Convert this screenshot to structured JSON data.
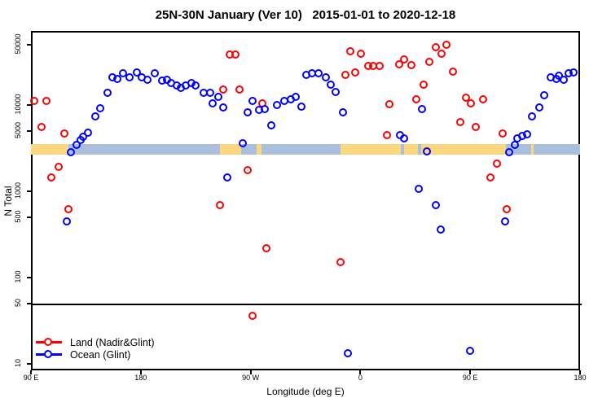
{
  "title": "25N-30N January (Ver 10)   2015-01-01 to 2020-12-18",
  "colors": {
    "land": "#ff0000",
    "ocean": "#0000ff",
    "band_land": "#fbd87f",
    "band_ocean": "#a9bfdc",
    "axis": "#000000"
  },
  "chart_data": {
    "type": "scatter",
    "title": "25N-30N January (Ver 10)   2015-01-01 to 2020-12-18",
    "xlabel": "Longitude (deg E)",
    "ylabel": "N Total",
    "y_scale": "log10",
    "ylim": [
      10,
      56000
    ],
    "x_axis": {
      "range": [
        90,
        540
      ],
      "ticks": [
        {
          "lon": 90,
          "label": "90 E"
        },
        {
          "lon": 180,
          "label": "180"
        },
        {
          "lon": 270,
          "label": "90 W"
        },
        {
          "lon": 360,
          "label": "0"
        },
        {
          "lon": 450,
          "label": "90 E"
        },
        {
          "lon": 540,
          "label": "180"
        }
      ]
    },
    "y_axis": {
      "ticks": [
        {
          "n": 50000,
          "label": "50000"
        },
        {
          "n": 10000,
          "label": "10000"
        },
        {
          "n": 5000,
          "label": "5000"
        },
        {
          "n": 1000,
          "label": "1000"
        },
        {
          "n": 500,
          "label": "500"
        },
        {
          "n": 100,
          "label": "100"
        },
        {
          "n": 50,
          "label": "50"
        },
        {
          "n": 10,
          "label": "10"
        }
      ]
    },
    "threshold_line_n": 50,
    "surface_band": {
      "center_n": 3050,
      "segments": [
        {
          "from": 90,
          "to": 121,
          "surface": "land"
        },
        {
          "from": 121,
          "to": 245,
          "surface": "ocean"
        },
        {
          "from": 245,
          "to": 262,
          "surface": "land"
        },
        {
          "from": 262,
          "to": 275,
          "surface": "ocean"
        },
        {
          "from": 275,
          "to": 279,
          "surface": "land"
        },
        {
          "from": 279,
          "to": 344,
          "surface": "ocean"
        },
        {
          "from": 344,
          "to": 393,
          "surface": "land"
        },
        {
          "from": 393,
          "to": 396,
          "surface": "ocean"
        },
        {
          "from": 396,
          "to": 407,
          "surface": "land"
        },
        {
          "from": 407,
          "to": 410,
          "surface": "ocean"
        },
        {
          "from": 410,
          "to": 479,
          "surface": "land"
        },
        {
          "from": 479,
          "to": 500,
          "surface": "ocean"
        },
        {
          "from": 500,
          "to": 502,
          "surface": "land"
        },
        {
          "from": 502,
          "to": 540,
          "surface": "ocean"
        }
      ]
    },
    "series": [
      {
        "name": "Land (Nadir&Glint)",
        "color_key": "land",
        "points": [
          {
            "lon": 93,
            "n": 11000
          },
          {
            "lon": 103,
            "n": 11000
          },
          {
            "lon": 99,
            "n": 5500
          },
          {
            "lon": 118,
            "n": 4700
          },
          {
            "lon": 113,
            "n": 1900
          },
          {
            "lon": 107,
            "n": 1450
          },
          {
            "lon": 121,
            "n": 610
          },
          {
            "lon": 253,
            "n": 38000
          },
          {
            "lon": 258,
            "n": 38000
          },
          {
            "lon": 248,
            "n": 15000
          },
          {
            "lon": 261,
            "n": 15000
          },
          {
            "lon": 280,
            "n": 10500
          },
          {
            "lon": 268,
            "n": 1730
          },
          {
            "lon": 245,
            "n": 680
          },
          {
            "lon": 283,
            "n": 215
          },
          {
            "lon": 272,
            "n": 36
          },
          {
            "lon": 344,
            "n": 150
          },
          {
            "lon": 348,
            "n": 22500
          },
          {
            "lon": 356,
            "n": 24000
          },
          {
            "lon": 352,
            "n": 42000
          },
          {
            "lon": 361,
            "n": 39000
          },
          {
            "lon": 367,
            "n": 28500
          },
          {
            "lon": 371,
            "n": 28000
          },
          {
            "lon": 376,
            "n": 28000
          },
          {
            "lon": 384,
            "n": 10200
          },
          {
            "lon": 382,
            "n": 4500
          },
          {
            "lon": 392,
            "n": 29500
          },
          {
            "lon": 396,
            "n": 34000
          },
          {
            "lon": 402,
            "n": 29000
          },
          {
            "lon": 417,
            "n": 31500
          },
          {
            "lon": 422,
            "n": 47000
          },
          {
            "lon": 427,
            "n": 39000
          },
          {
            "lon": 431,
            "n": 50000
          },
          {
            "lon": 436,
            "n": 24500
          },
          {
            "lon": 412,
            "n": 17000
          },
          {
            "lon": 406,
            "n": 11500
          },
          {
            "lon": 447,
            "n": 12000
          },
          {
            "lon": 451,
            "n": 10500
          },
          {
            "lon": 461,
            "n": 11700
          },
          {
            "lon": 442,
            "n": 6300
          },
          {
            "lon": 455,
            "n": 5500
          },
          {
            "lon": 477,
            "n": 4700
          },
          {
            "lon": 472,
            "n": 2100
          },
          {
            "lon": 467,
            "n": 1450
          },
          {
            "lon": 480,
            "n": 610
          }
        ]
      },
      {
        "name": "Ocean (Glint)",
        "color_key": "ocean",
        "points": [
          {
            "lon": 123,
            "n": 2800
          },
          {
            "lon": 128,
            "n": 3400
          },
          {
            "lon": 131,
            "n": 3900
          },
          {
            "lon": 133,
            "n": 4300
          },
          {
            "lon": 137,
            "n": 4800
          },
          {
            "lon": 143,
            "n": 7300
          },
          {
            "lon": 147,
            "n": 9200
          },
          {
            "lon": 153,
            "n": 13700
          },
          {
            "lon": 157,
            "n": 21000
          },
          {
            "lon": 161,
            "n": 20000
          },
          {
            "lon": 166,
            "n": 23000
          },
          {
            "lon": 171,
            "n": 21000
          },
          {
            "lon": 177,
            "n": 24000
          },
          {
            "lon": 181,
            "n": 21000
          },
          {
            "lon": 186,
            "n": 19500
          },
          {
            "lon": 192,
            "n": 23500
          },
          {
            "lon": 198,
            "n": 19000
          },
          {
            "lon": 202,
            "n": 19500
          },
          {
            "lon": 205,
            "n": 18000
          },
          {
            "lon": 210,
            "n": 16700
          },
          {
            "lon": 213,
            "n": 15600
          },
          {
            "lon": 217,
            "n": 16700
          },
          {
            "lon": 222,
            "n": 17800
          },
          {
            "lon": 225,
            "n": 16700
          },
          {
            "lon": 232,
            "n": 13700
          },
          {
            "lon": 237,
            "n": 13700
          },
          {
            "lon": 244,
            "n": 12500
          },
          {
            "lon": 239,
            "n": 10500
          },
          {
            "lon": 248,
            "n": 9400
          },
          {
            "lon": 268,
            "n": 8100
          },
          {
            "lon": 272,
            "n": 11000
          },
          {
            "lon": 277,
            "n": 8700
          },
          {
            "lon": 282,
            "n": 8900
          },
          {
            "lon": 287,
            "n": 5800
          },
          {
            "lon": 292,
            "n": 10000
          },
          {
            "lon": 298,
            "n": 11000
          },
          {
            "lon": 303,
            "n": 11700
          },
          {
            "lon": 307,
            "n": 12500
          },
          {
            "lon": 312,
            "n": 9600
          },
          {
            "lon": 316,
            "n": 22500
          },
          {
            "lon": 321,
            "n": 23000
          },
          {
            "lon": 326,
            "n": 23000
          },
          {
            "lon": 332,
            "n": 21000
          },
          {
            "lon": 336,
            "n": 17000
          },
          {
            "lon": 340,
            "n": 14000
          },
          {
            "lon": 346,
            "n": 8100
          },
          {
            "lon": 264,
            "n": 3600
          },
          {
            "lon": 251,
            "n": 1430
          },
          {
            "lon": 120,
            "n": 440
          },
          {
            "lon": 350,
            "n": 13
          },
          {
            "lon": 450,
            "n": 14
          },
          {
            "lon": 411,
            "n": 8900
          },
          {
            "lon": 393,
            "n": 4500
          },
          {
            "lon": 396,
            "n": 4100
          },
          {
            "lon": 415,
            "n": 2900
          },
          {
            "lon": 408,
            "n": 1070
          },
          {
            "lon": 422,
            "n": 680
          },
          {
            "lon": 426,
            "n": 360
          },
          {
            "lon": 479,
            "n": 440
          },
          {
            "lon": 482,
            "n": 2850
          },
          {
            "lon": 487,
            "n": 3400
          },
          {
            "lon": 489,
            "n": 4100
          },
          {
            "lon": 493,
            "n": 4400
          },
          {
            "lon": 497,
            "n": 4600
          },
          {
            "lon": 501,
            "n": 7300
          },
          {
            "lon": 507,
            "n": 9400
          },
          {
            "lon": 511,
            "n": 13000
          },
          {
            "lon": 516,
            "n": 21000
          },
          {
            "lon": 521,
            "n": 20000
          },
          {
            "lon": 523,
            "n": 22000
          },
          {
            "lon": 527,
            "n": 19500
          },
          {
            "lon": 531,
            "n": 23000
          },
          {
            "lon": 535,
            "n": 24000
          }
        ]
      }
    ]
  },
  "legend": {
    "items": [
      {
        "label": "Land (Nadir&Glint)",
        "color_key": "land"
      },
      {
        "label": "Ocean (Glint)",
        "color_key": "ocean"
      }
    ]
  }
}
